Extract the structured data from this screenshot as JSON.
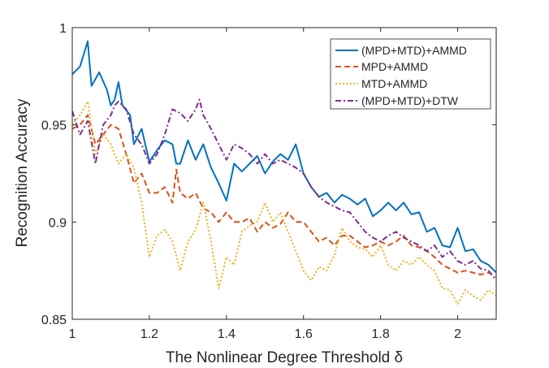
{
  "chart_data": {
    "type": "line",
    "xlabel": "The Nonlinear Degree Threshold δ",
    "ylabel": "Recognition Accuracy",
    "xlim": [
      1,
      2.1
    ],
    "ylim": [
      0.85,
      1
    ],
    "x_ticks": [
      1,
      1.2,
      1.4,
      1.6,
      1.8,
      2
    ],
    "x_tick_labels": [
      "1",
      "1.2",
      "1.4",
      "1.6",
      "1.8",
      "2"
    ],
    "y_ticks": [
      0.85,
      0.9,
      0.95,
      1
    ],
    "y_tick_labels": [
      "0.85",
      "0.9",
      "0.95",
      "1"
    ],
    "grid": false,
    "legend_position": "top-right",
    "series": [
      {
        "name": "(MPD+MTD)+AMMD",
        "color": "#0072BD",
        "dash": "solid",
        "x": [
          1.0,
          1.02,
          1.04,
          1.05,
          1.07,
          1.09,
          1.1,
          1.11,
          1.12,
          1.13,
          1.15,
          1.16,
          1.18,
          1.2,
          1.22,
          1.24,
          1.26,
          1.27,
          1.28,
          1.3,
          1.32,
          1.34,
          1.36,
          1.38,
          1.4,
          1.42,
          1.44,
          1.46,
          1.48,
          1.5,
          1.52,
          1.54,
          1.56,
          1.58,
          1.6,
          1.62,
          1.64,
          1.66,
          1.68,
          1.7,
          1.72,
          1.74,
          1.76,
          1.78,
          1.8,
          1.82,
          1.84,
          1.86,
          1.88,
          1.9,
          1.92,
          1.94,
          1.96,
          1.98,
          2.0,
          2.02,
          2.04,
          2.06,
          2.08,
          2.1
        ],
        "y": [
          0.976,
          0.98,
          0.993,
          0.97,
          0.977,
          0.968,
          0.96,
          0.963,
          0.972,
          0.96,
          0.955,
          0.94,
          0.948,
          0.931,
          0.937,
          0.942,
          0.94,
          0.93,
          0.93,
          0.942,
          0.932,
          0.94,
          0.928,
          0.92,
          0.911,
          0.93,
          0.926,
          0.93,
          0.934,
          0.925,
          0.931,
          0.935,
          0.932,
          0.94,
          0.925,
          0.918,
          0.913,
          0.915,
          0.91,
          0.914,
          0.912,
          0.909,
          0.912,
          0.903,
          0.906,
          0.91,
          0.906,
          0.91,
          0.904,
          0.905,
          0.895,
          0.897,
          0.888,
          0.887,
          0.897,
          0.885,
          0.886,
          0.88,
          0.878,
          0.874
        ]
      },
      {
        "name": "MPD+AMMD",
        "color": "#D95319",
        "dash": "dashed",
        "x": [
          1.0,
          1.02,
          1.04,
          1.06,
          1.08,
          1.1,
          1.12,
          1.14,
          1.16,
          1.18,
          1.2,
          1.22,
          1.24,
          1.26,
          1.27,
          1.28,
          1.3,
          1.32,
          1.34,
          1.36,
          1.38,
          1.4,
          1.42,
          1.44,
          1.46,
          1.48,
          1.5,
          1.52,
          1.54,
          1.56,
          1.58,
          1.6,
          1.62,
          1.64,
          1.66,
          1.68,
          1.7,
          1.72,
          1.74,
          1.76,
          1.78,
          1.8,
          1.82,
          1.84,
          1.86,
          1.88,
          1.9,
          1.92,
          1.94,
          1.96,
          1.98,
          2.0,
          2.02,
          2.04,
          2.06,
          2.08,
          2.1
        ],
        "y": [
          0.948,
          0.95,
          0.955,
          0.94,
          0.945,
          0.95,
          0.948,
          0.935,
          0.92,
          0.925,
          0.915,
          0.915,
          0.918,
          0.91,
          0.927,
          0.915,
          0.912,
          0.915,
          0.907,
          0.905,
          0.9,
          0.905,
          0.9,
          0.9,
          0.902,
          0.895,
          0.9,
          0.897,
          0.899,
          0.905,
          0.9,
          0.9,
          0.895,
          0.89,
          0.892,
          0.888,
          0.893,
          0.893,
          0.89,
          0.887,
          0.888,
          0.89,
          0.888,
          0.89,
          0.893,
          0.888,
          0.887,
          0.885,
          0.882,
          0.878,
          0.876,
          0.874,
          0.875,
          0.874,
          0.873,
          0.874,
          0.872
        ]
      },
      {
        "name": "MTD+AMMD",
        "color": "#EDB120",
        "dash": "dotted",
        "x": [
          1.0,
          1.02,
          1.04,
          1.06,
          1.08,
          1.1,
          1.12,
          1.14,
          1.16,
          1.18,
          1.2,
          1.22,
          1.24,
          1.26,
          1.28,
          1.3,
          1.32,
          1.34,
          1.36,
          1.38,
          1.4,
          1.42,
          1.44,
          1.46,
          1.48,
          1.5,
          1.52,
          1.54,
          1.56,
          1.58,
          1.6,
          1.62,
          1.64,
          1.66,
          1.68,
          1.7,
          1.72,
          1.74,
          1.76,
          1.78,
          1.8,
          1.82,
          1.84,
          1.86,
          1.88,
          1.9,
          1.92,
          1.94,
          1.96,
          1.98,
          2.0,
          2.02,
          2.04,
          2.06,
          2.08,
          2.1
        ],
        "y": [
          0.95,
          0.955,
          0.962,
          0.935,
          0.945,
          0.94,
          0.93,
          0.935,
          0.928,
          0.91,
          0.882,
          0.893,
          0.896,
          0.89,
          0.875,
          0.89,
          0.896,
          0.91,
          0.89,
          0.866,
          0.882,
          0.878,
          0.895,
          0.898,
          0.9,
          0.91,
          0.9,
          0.905,
          0.895,
          0.885,
          0.875,
          0.87,
          0.877,
          0.875,
          0.883,
          0.897,
          0.89,
          0.887,
          0.886,
          0.882,
          0.888,
          0.878,
          0.875,
          0.88,
          0.878,
          0.882,
          0.878,
          0.875,
          0.866,
          0.865,
          0.858,
          0.865,
          0.862,
          0.86,
          0.865,
          0.862
        ]
      },
      {
        "name": "(MPD+MTD)+DTW",
        "color": "#7E2F8E",
        "dash": "dashdot",
        "x": [
          1.0,
          1.02,
          1.04,
          1.06,
          1.08,
          1.1,
          1.11,
          1.12,
          1.14,
          1.16,
          1.18,
          1.2,
          1.22,
          1.24,
          1.26,
          1.28,
          1.3,
          1.32,
          1.33,
          1.34,
          1.36,
          1.38,
          1.4,
          1.42,
          1.44,
          1.46,
          1.48,
          1.5,
          1.52,
          1.54,
          1.56,
          1.58,
          1.6,
          1.62,
          1.64,
          1.66,
          1.68,
          1.7,
          1.72,
          1.74,
          1.76,
          1.78,
          1.8,
          1.82,
          1.84,
          1.86,
          1.88,
          1.9,
          1.92,
          1.94,
          1.96,
          1.98,
          2.0,
          2.02,
          2.04,
          2.06,
          2.08,
          2.1
        ],
        "y": [
          0.957,
          0.945,
          0.952,
          0.93,
          0.95,
          0.955,
          0.96,
          0.962,
          0.958,
          0.945,
          0.94,
          0.93,
          0.935,
          0.945,
          0.958,
          0.956,
          0.952,
          0.958,
          0.963,
          0.955,
          0.948,
          0.94,
          0.932,
          0.94,
          0.938,
          0.935,
          0.93,
          0.935,
          0.93,
          0.932,
          0.93,
          0.928,
          0.925,
          0.918,
          0.913,
          0.91,
          0.908,
          0.906,
          0.905,
          0.9,
          0.895,
          0.892,
          0.89,
          0.893,
          0.895,
          0.892,
          0.89,
          0.888,
          0.885,
          0.888,
          0.882,
          0.885,
          0.88,
          0.878,
          0.88,
          0.876,
          0.875,
          0.87
        ]
      }
    ]
  }
}
